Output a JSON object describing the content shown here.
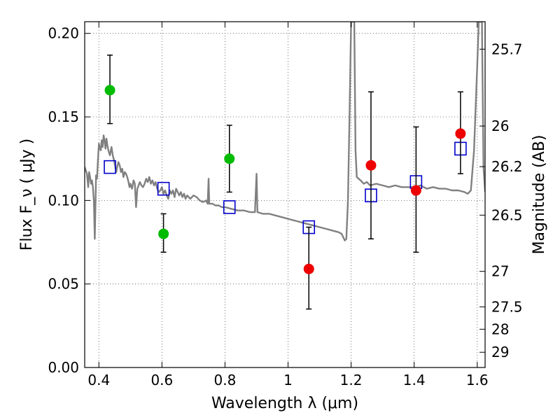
{
  "chart_data": {
    "type": "scatter",
    "xlabel": "Wavelength  λ (μm)",
    "ylabel": "Flux  F_ν  ( μJy )",
    "ylabel_right": "Magnitude (AB)",
    "xlim": [
      0.355,
      1.625
    ],
    "ylim": [
      0.0,
      0.207
    ],
    "grid": true,
    "x_ticks": [
      {
        "value": 0.4,
        "label": "0.4"
      },
      {
        "value": 0.6,
        "label": "0.6"
      },
      {
        "value": 0.8,
        "label": "0.8"
      },
      {
        "value": 1.0,
        "label": "1"
      },
      {
        "value": 1.2,
        "label": "1.2"
      },
      {
        "value": 1.4,
        "label": "1.4"
      },
      {
        "value": 1.6,
        "label": "1.6"
      }
    ],
    "y_ticks": [
      {
        "value": 0.0,
        "label": "0.00"
      },
      {
        "value": 0.05,
        "label": "0.05"
      },
      {
        "value": 0.1,
        "label": "0.10"
      },
      {
        "value": 0.15,
        "label": "0.15"
      },
      {
        "value": 0.2,
        "label": "0.20"
      }
    ],
    "mag_ticks": [
      {
        "value": 25.7,
        "label": "25.7"
      },
      {
        "value": 26.0,
        "label": "26"
      },
      {
        "value": 26.2,
        "label": "26.2"
      },
      {
        "value": 26.5,
        "label": "26.5"
      },
      {
        "value": 27.0,
        "label": "27"
      },
      {
        "value": 27.5,
        "label": "27.5"
      },
      {
        "value": 28.0,
        "label": "28"
      },
      {
        "value": 29.0,
        "label": "29"
      }
    ],
    "series": [
      {
        "style": "spectrum",
        "color": "#808080",
        "points": [
          [
            0.355,
            0.12
          ],
          [
            0.362,
            0.116
          ],
          [
            0.366,
            0.108
          ],
          [
            0.369,
            0.117
          ],
          [
            0.372,
            0.114
          ],
          [
            0.375,
            0.11
          ],
          [
            0.378,
            0.112
          ],
          [
            0.381,
            0.108
          ],
          [
            0.384,
            0.1
          ],
          [
            0.387,
            0.077
          ],
          [
            0.389,
            0.095
          ],
          [
            0.391,
            0.115
          ],
          [
            0.394,
            0.113
          ],
          [
            0.397,
            0.124
          ],
          [
            0.4,
            0.134
          ],
          [
            0.403,
            0.131
          ],
          [
            0.406,
            0.13
          ],
          [
            0.409,
            0.136
          ],
          [
            0.412,
            0.132
          ],
          [
            0.415,
            0.139
          ],
          [
            0.418,
            0.136
          ],
          [
            0.421,
            0.131
          ],
          [
            0.424,
            0.137
          ],
          [
            0.427,
            0.133
          ],
          [
            0.43,
            0.13
          ],
          [
            0.435,
            0.127
          ],
          [
            0.44,
            0.132
          ],
          [
            0.444,
            0.127
          ],
          [
            0.448,
            0.124
          ],
          [
            0.452,
            0.12
          ],
          [
            0.455,
            0.117
          ],
          [
            0.458,
            0.12
          ],
          [
            0.462,
            0.123
          ],
          [
            0.466,
            0.121
          ],
          [
            0.47,
            0.117
          ],
          [
            0.474,
            0.119
          ],
          [
            0.478,
            0.114
          ],
          [
            0.482,
            0.117
          ],
          [
            0.486,
            0.116
          ],
          [
            0.49,
            0.114
          ],
          [
            0.494,
            0.111
          ],
          [
            0.497,
            0.108
          ],
          [
            0.5,
            0.11
          ],
          [
            0.505,
            0.107
          ],
          [
            0.51,
            0.112
          ],
          [
            0.514,
            0.11
          ],
          [
            0.518,
            0.096
          ],
          [
            0.522,
            0.107
          ],
          [
            0.526,
            0.109
          ],
          [
            0.53,
            0.111
          ],
          [
            0.535,
            0.109
          ],
          [
            0.54,
            0.108
          ],
          [
            0.545,
            0.11
          ],
          [
            0.55,
            0.113
          ],
          [
            0.555,
            0.111
          ],
          [
            0.56,
            0.114
          ],
          [
            0.565,
            0.11
          ],
          [
            0.57,
            0.112
          ],
          [
            0.575,
            0.109
          ],
          [
            0.58,
            0.111
          ],
          [
            0.585,
            0.107
          ],
          [
            0.59,
            0.105
          ],
          [
            0.595,
            0.106
          ],
          [
            0.6,
            0.108
          ],
          [
            0.605,
            0.104
          ],
          [
            0.61,
            0.106
          ],
          [
            0.615,
            0.103
          ],
          [
            0.62,
            0.101
          ],
          [
            0.625,
            0.106
          ],
          [
            0.63,
            0.104
          ],
          [
            0.635,
            0.106
          ],
          [
            0.64,
            0.102
          ],
          [
            0.645,
            0.107
          ],
          [
            0.65,
            0.105
          ],
          [
            0.655,
            0.103
          ],
          [
            0.66,
            0.105
          ],
          [
            0.665,
            0.102
          ],
          [
            0.67,
            0.104
          ],
          [
            0.675,
            0.101
          ],
          [
            0.68,
            0.103
          ],
          [
            0.69,
            0.101
          ],
          [
            0.7,
            0.103
          ],
          [
            0.71,
            0.102
          ],
          [
            0.72,
            0.1
          ],
          [
            0.73,
            0.099
          ],
          [
            0.74,
            0.1
          ],
          [
            0.745,
            0.098
          ],
          [
            0.748,
            0.113
          ],
          [
            0.75,
            0.098
          ],
          [
            0.76,
            0.098
          ],
          [
            0.77,
            0.097
          ],
          [
            0.78,
            0.097
          ],
          [
            0.79,
            0.096
          ],
          [
            0.8,
            0.096
          ],
          [
            0.82,
            0.095
          ],
          [
            0.84,
            0.094
          ],
          [
            0.86,
            0.094
          ],
          [
            0.88,
            0.093
          ],
          [
            0.895,
            0.093
          ],
          [
            0.9,
            0.116
          ],
          [
            0.903,
            0.093
          ],
          [
            0.92,
            0.092
          ],
          [
            0.94,
            0.092
          ],
          [
            0.96,
            0.091
          ],
          [
            0.98,
            0.09
          ],
          [
            1.0,
            0.089
          ],
          [
            1.02,
            0.088
          ],
          [
            1.04,
            0.087
          ],
          [
            1.06,
            0.086
          ],
          [
            1.08,
            0.085
          ],
          [
            1.1,
            0.084
          ],
          [
            1.12,
            0.083
          ],
          [
            1.14,
            0.082
          ],
          [
            1.16,
            0.081
          ],
          [
            1.17,
            0.08
          ],
          [
            1.18,
            0.076
          ],
          [
            1.185,
            0.077
          ],
          [
            1.19,
            0.1
          ],
          [
            1.195,
            0.15
          ],
          [
            1.2,
            0.207
          ],
          [
            1.21,
            0.207
          ],
          [
            1.214,
            0.13
          ],
          [
            1.218,
            0.114
          ],
          [
            1.23,
            0.112
          ],
          [
            1.24,
            0.11
          ],
          [
            1.25,
            0.111
          ],
          [
            1.26,
            0.109
          ],
          [
            1.28,
            0.11
          ],
          [
            1.3,
            0.109
          ],
          [
            1.32,
            0.108
          ],
          [
            1.34,
            0.109
          ],
          [
            1.36,
            0.108
          ],
          [
            1.38,
            0.108
          ],
          [
            1.4,
            0.108
          ],
          [
            1.42,
            0.109
          ],
          [
            1.44,
            0.107
          ],
          [
            1.46,
            0.108
          ],
          [
            1.48,
            0.107
          ],
          [
            1.5,
            0.107
          ],
          [
            1.52,
            0.106
          ],
          [
            1.54,
            0.106
          ],
          [
            1.56,
            0.105
          ],
          [
            1.57,
            0.104
          ],
          [
            1.58,
            0.106
          ],
          [
            1.59,
            0.13
          ],
          [
            1.6,
            0.18
          ],
          [
            1.605,
            0.207
          ],
          [
            1.615,
            0.207
          ],
          [
            1.62,
            0.12
          ],
          [
            1.625,
            0.105
          ]
        ]
      },
      {
        "style": "model-squares",
        "color": "#0000cc",
        "points": [
          [
            0.435,
            0.12
          ],
          [
            0.605,
            0.107
          ],
          [
            0.814,
            0.096
          ],
          [
            1.066,
            0.084
          ],
          [
            1.263,
            0.103
          ],
          [
            1.406,
            0.111
          ],
          [
            1.547,
            0.131
          ]
        ]
      },
      {
        "style": "green-points",
        "color": "#00bb00",
        "points": [
          {
            "x": 0.435,
            "y": 0.166,
            "lo": 0.146,
            "hi": 0.187
          },
          {
            "x": 0.605,
            "y": 0.08,
            "lo": 0.069,
            "hi": 0.092
          },
          {
            "x": 0.814,
            "y": 0.125,
            "lo": 0.105,
            "hi": 0.145
          }
        ]
      },
      {
        "style": "red-points",
        "color": "#ee0000",
        "points": [
          {
            "x": 1.066,
            "y": 0.059,
            "lo": 0.035,
            "hi": 0.084
          },
          {
            "x": 1.263,
            "y": 0.121,
            "lo": 0.077,
            "hi": 0.165
          },
          {
            "x": 1.406,
            "y": 0.106,
            "lo": 0.069,
            "hi": 0.144
          },
          {
            "x": 1.547,
            "y": 0.14,
            "lo": 0.116,
            "hi": 0.165
          }
        ]
      }
    ]
  }
}
